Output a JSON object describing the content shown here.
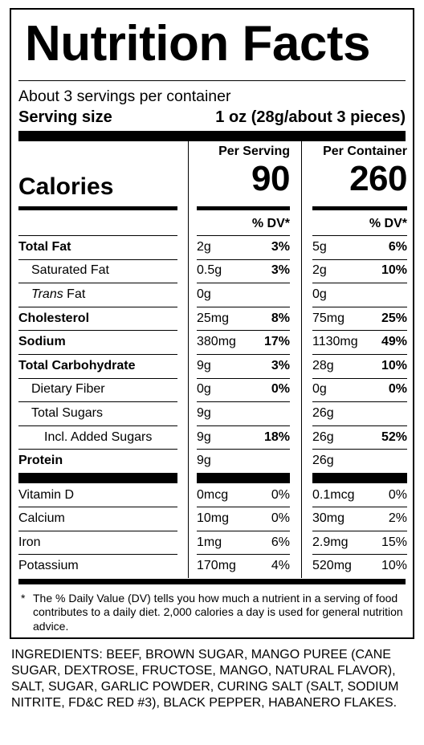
{
  "title": "Nutrition Facts",
  "servings_per_container": "About 3 servings per container",
  "serving_size_label": "Serving size",
  "serving_size_value": "1 oz (28g/about 3 pieces)",
  "columns": {
    "per_serving": "Per Serving",
    "per_container": "Per Container"
  },
  "calories": {
    "label": "Calories",
    "per_serving": "90",
    "per_container": "260"
  },
  "dv_header": "% DV*",
  "nutrients": [
    {
      "name": "Total Fat",
      "name_italic": "",
      "style": "bold",
      "indent": 0,
      "s_amt": "2g",
      "s_pct": "3%",
      "c_amt": "5g",
      "c_pct": "6%"
    },
    {
      "name": "Saturated Fat",
      "name_italic": "",
      "style": "normal",
      "indent": 1,
      "s_amt": "0.5g",
      "s_pct": "3%",
      "c_amt": "2g",
      "c_pct": "10%"
    },
    {
      "name": " Fat",
      "name_italic": "Trans",
      "style": "normal",
      "indent": 1,
      "s_amt": "0g",
      "s_pct": "",
      "c_amt": "0g",
      "c_pct": ""
    },
    {
      "name": "Cholesterol",
      "name_italic": "",
      "style": "bold",
      "indent": 0,
      "s_amt": "25mg",
      "s_pct": "8%",
      "c_amt": "75mg",
      "c_pct": "25%"
    },
    {
      "name": "Sodium",
      "name_italic": "",
      "style": "bold",
      "indent": 0,
      "s_amt": "380mg",
      "s_pct": "17%",
      "c_amt": "1130mg",
      "c_pct": "49%"
    },
    {
      "name": "Total Carbohydrate",
      "name_italic": "",
      "style": "bold",
      "indent": 0,
      "s_amt": "9g",
      "s_pct": "3%",
      "c_amt": "28g",
      "c_pct": "10%"
    },
    {
      "name": "Dietary Fiber",
      "name_italic": "",
      "style": "normal",
      "indent": 1,
      "s_amt": "0g",
      "s_pct": "0%",
      "c_amt": "0g",
      "c_pct": "0%"
    },
    {
      "name": "Total Sugars",
      "name_italic": "",
      "style": "normal",
      "indent": 1,
      "s_amt": "9g",
      "s_pct": "",
      "c_amt": "26g",
      "c_pct": ""
    },
    {
      "name": "Incl. Added Sugars",
      "name_italic": "",
      "style": "normal",
      "indent": 2,
      "s_amt": "9g",
      "s_pct": "18%",
      "c_amt": "26g",
      "c_pct": "52%"
    },
    {
      "name": "Protein",
      "name_italic": "",
      "style": "bold",
      "indent": 0,
      "s_amt": "9g",
      "s_pct": "",
      "c_amt": "26g",
      "c_pct": ""
    }
  ],
  "vitamins": [
    {
      "name": "Vitamin D",
      "s_amt": "0mcg",
      "s_pct": "0%",
      "c_amt": "0.1mcg",
      "c_pct": "0%"
    },
    {
      "name": "Calcium",
      "s_amt": "10mg",
      "s_pct": "0%",
      "c_amt": "30mg",
      "c_pct": "2%"
    },
    {
      "name": "Iron",
      "s_amt": "1mg",
      "s_pct": "6%",
      "c_amt": "2.9mg",
      "c_pct": "15%"
    },
    {
      "name": "Potassium",
      "s_amt": "170mg",
      "s_pct": "4%",
      "c_amt": "520mg",
      "c_pct": "10%"
    }
  ],
  "footnote_star": "*",
  "footnote": "The % Daily Value (DV) tells you how much a nutrient in a serving of food contributes to a daily diet. 2,000 calories a day is used for general nutrition advice.",
  "ingredients": "INGREDIENTS: BEEF, BROWN SUGAR, MANGO PUREE (CANE SUGAR, DEXTROSE, FRUCTOSE, MANGO, NATURAL FLAVOR), SALT, SUGAR, GARLIC POWDER, CURING SALT (SALT, SODIUM NITRITE, FD&C RED #3), BLACK PEPPER, HABANERO FLAKES."
}
